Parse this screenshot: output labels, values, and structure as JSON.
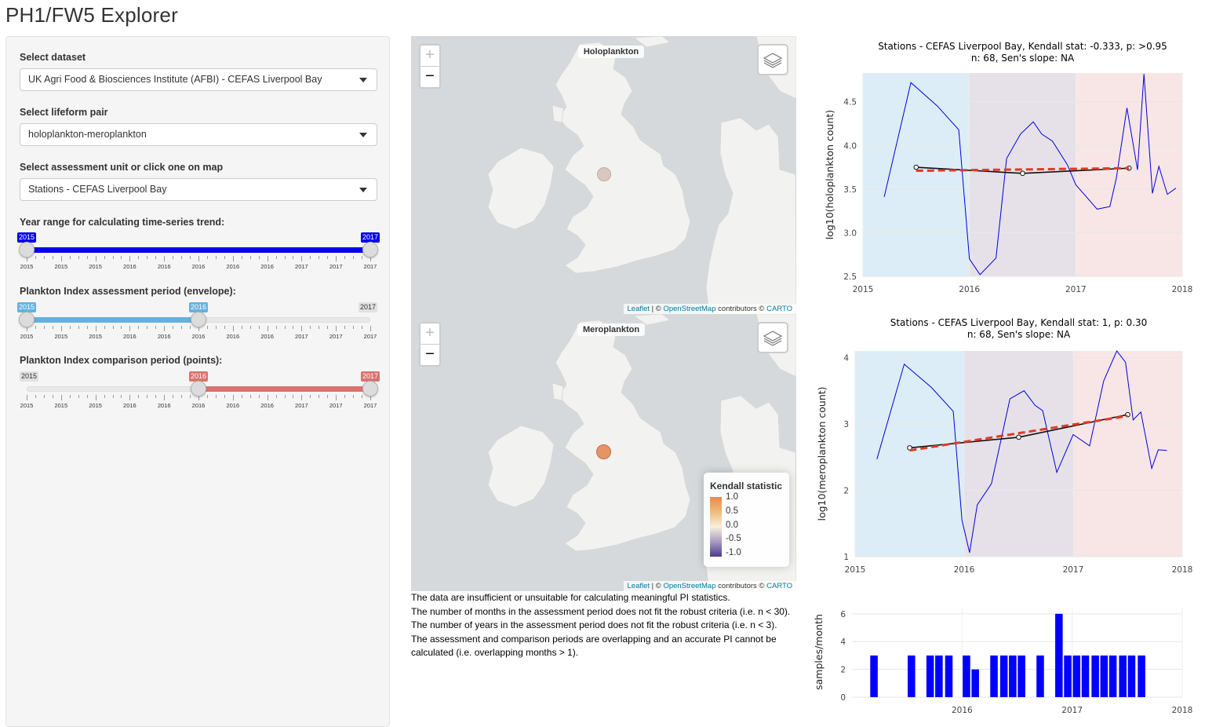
{
  "app": {
    "title": "PH1/FW5 Explorer"
  },
  "sidebar": {
    "dataset": {
      "label": "Select dataset",
      "value": "UK Agri Food & Biosciences Institute (AFBI) - CEFAS Liverpool Bay"
    },
    "lifeform": {
      "label": "Select lifeform pair",
      "value": "holoplankton-meroplankton"
    },
    "unit": {
      "label": "Select assessment unit or click one on map",
      "value": "Stations - CEFAS Liverpool Bay"
    },
    "sliders": [
      {
        "label": "Year range for calculating time-series trend:",
        "from": "2015",
        "to": "2017",
        "min": "2015",
        "max": "2017",
        "color": "#0000ee",
        "from_frac": 0.0,
        "to_frac": 1.0,
        "show_min": false,
        "show_max": false,
        "ticks": [
          "2015",
          "2015",
          "2015",
          "2016",
          "2016",
          "2016",
          "2016",
          "2016",
          "2017",
          "2017",
          "2017"
        ]
      },
      {
        "label": "Plankton Index assessment period (envelope):",
        "from": "2015",
        "to": "2016",
        "min": "2015",
        "max": "2017",
        "color": "#65b1de",
        "from_frac": 0.0,
        "to_frac": 0.5,
        "show_min": false,
        "show_max": true,
        "ticks": [
          "2015",
          "2015",
          "2015",
          "2016",
          "2016",
          "2016",
          "2016",
          "2016",
          "2017",
          "2017",
          "2017"
        ]
      },
      {
        "label": "Plankton Index comparison period (points):",
        "from": "2016",
        "to": "2017",
        "min": "2015",
        "max": "2017",
        "color": "#d9736e",
        "from_frac": 0.5,
        "to_frac": 1.0,
        "show_min": true,
        "show_max": false,
        "ticks": [
          "2015",
          "2015",
          "2015",
          "2016",
          "2016",
          "2016",
          "2016",
          "2016",
          "2017",
          "2017",
          "2017"
        ]
      }
    ]
  },
  "maps": {
    "top": {
      "title": "Holoplankton",
      "marker_color": "#d8c8c2"
    },
    "bottom": {
      "title": "Meroplankton",
      "marker_color": "#e59466"
    },
    "zoom_in": "+",
    "zoom_out": "−",
    "attribution": {
      "leaflet": "Leaflet",
      "sep1": " | © ",
      "osm": "OpenStreetMap",
      "mid": " contributors © ",
      "carto": "CARTO"
    },
    "legend": {
      "title": "Kendall statistic",
      "values": [
        "1.0",
        "0.5",
        "0.0",
        "-0.5",
        "-1.0"
      ]
    }
  },
  "messages": [
    "The data are insufficient or unsuitable for calculating meaningful PI statistics.",
    "The number of months in the assessment period does not fit the robust criteria (i.e. n < 30).",
    "The number of years in the assessment period does not fit the robust criteria (i.e. n < 3).",
    "The assessment and comparison periods are overlapping and an accurate PI cannot be calculated (i.e. overlapping months > 1)."
  ],
  "chart_data": [
    {
      "type": "line",
      "title": "Stations - CEFAS Liverpool Bay, Kendall stat: -0.333, p: >0.95",
      "subtitle": "n: 68, Sen's slope: NA",
      "xlabel": "",
      "ylabel": "log10(holoplankton count)",
      "xlim": [
        2015,
        2018
      ],
      "ylim": [
        2.5,
        4.83
      ],
      "xticks": [
        "2015",
        "2016",
        "2017",
        "2018"
      ],
      "yticks": [
        "2.5",
        "3.0",
        "3.5",
        "4.0",
        "4.5"
      ],
      "periods": [
        {
          "from": 2015.0,
          "to": 2016.0,
          "color": "#c6e1f3"
        },
        {
          "from": 2016.0,
          "to": 2017.0,
          "color": "#d6cdd9"
        },
        {
          "from": 2017.0,
          "to": 2018.0,
          "color": "#f3d5d5"
        }
      ],
      "series": [
        {
          "color": "#0000dd",
          "x": [
            2015.2,
            2015.45,
            2015.7,
            2015.9,
            2016.0,
            2016.1,
            2016.25,
            2016.35,
            2016.48,
            2016.6,
            2016.68,
            2016.78,
            2016.92,
            2017.0,
            2017.2,
            2017.32,
            2017.38,
            2017.48,
            2017.58,
            2017.64,
            2017.72,
            2017.78,
            2017.86,
            2017.94
          ],
          "y": [
            3.41,
            4.72,
            4.45,
            4.18,
            2.7,
            2.52,
            2.71,
            3.85,
            4.13,
            4.27,
            4.13,
            4.05,
            3.78,
            3.55,
            3.27,
            3.3,
            3.62,
            4.43,
            3.72,
            4.82,
            3.45,
            3.76,
            3.44,
            3.51
          ]
        },
        {
          "color": "#111111",
          "x": [
            2015.5,
            2016.5,
            2017.5
          ],
          "y": [
            3.75,
            3.68,
            3.74
          ],
          "markers": true
        },
        {
          "color": "#e03a2a",
          "dashed": true,
          "x": [
            2015.5,
            2017.5
          ],
          "y": [
            3.71,
            3.74
          ]
        }
      ]
    },
    {
      "type": "line",
      "title": "Stations - CEFAS Liverpool Bay, Kendall stat: 1, p: 0.30",
      "subtitle": "n: 68, Sen's slope: NA",
      "xlabel": "",
      "ylabel": "log10(meroplankton count)",
      "xlim": [
        2015,
        2018
      ],
      "ylim": [
        1,
        4.1
      ],
      "xticks": [
        "2015",
        "2016",
        "2017",
        "2018"
      ],
      "yticks": [
        "1",
        "2",
        "3",
        "4"
      ],
      "periods": [
        {
          "from": 2015.0,
          "to": 2016.0,
          "color": "#c6e1f3"
        },
        {
          "from": 2016.0,
          "to": 2017.0,
          "color": "#d6cdd9"
        },
        {
          "from": 2017.0,
          "to": 2018.0,
          "color": "#f3d5d5"
        }
      ],
      "series": [
        {
          "color": "#0000dd",
          "x": [
            2015.2,
            2015.45,
            2015.7,
            2015.9,
            2015.98,
            2016.05,
            2016.12,
            2016.25,
            2016.42,
            2016.55,
            2016.65,
            2016.72,
            2016.85,
            2017.0,
            2017.15,
            2017.28,
            2017.4,
            2017.48,
            2017.55,
            2017.62,
            2017.72,
            2017.78,
            2017.86
          ],
          "y": [
            2.47,
            3.9,
            3.55,
            3.19,
            1.55,
            1.06,
            1.78,
            2.1,
            3.38,
            3.5,
            3.28,
            3.2,
            2.27,
            2.84,
            2.67,
            3.65,
            4.1,
            3.93,
            3.06,
            3.18,
            2.33,
            2.61,
            2.6
          ]
        },
        {
          "color": "#111111",
          "x": [
            2015.5,
            2016.5,
            2017.5
          ],
          "y": [
            2.64,
            2.8,
            3.14
          ],
          "markers": true
        },
        {
          "color": "#e03a2a",
          "dashed": true,
          "x": [
            2015.5,
            2017.5
          ],
          "y": [
            2.6,
            3.12
          ]
        }
      ]
    },
    {
      "type": "bar",
      "title": "",
      "xlabel": "",
      "ylabel": "samples/month",
      "xlim": [
        2015,
        2018
      ],
      "ylim": [
        0,
        6.5
      ],
      "xticks": [
        "2016",
        "2017",
        "2018"
      ],
      "yticks": [
        "0",
        "2",
        "4",
        "6"
      ],
      "bar_color": "#0000ff",
      "bar_width": 0.068,
      "x": [
        2015.2,
        2015.54,
        2015.71,
        2015.79,
        2015.88,
        2016.04,
        2016.12,
        2016.29,
        2016.38,
        2016.46,
        2016.54,
        2016.71,
        2016.88,
        2016.96,
        2017.04,
        2017.12,
        2017.21,
        2017.29,
        2017.37,
        2017.46,
        2017.54,
        2017.63
      ],
      "values": [
        3,
        3,
        3,
        3,
        3,
        3,
        2,
        3,
        3,
        3,
        3,
        3,
        6,
        3,
        3,
        3,
        3,
        3,
        3,
        3,
        3,
        3
      ]
    }
  ]
}
